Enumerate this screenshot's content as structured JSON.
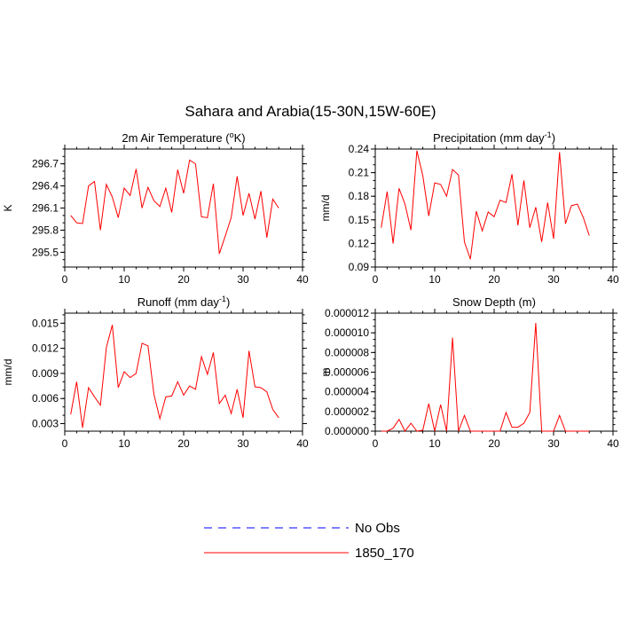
{
  "figure": {
    "title": "Sahara and Arabia(15-30N,15W-60E)",
    "legend": [
      {
        "label": "No Obs",
        "color": "#0000ff",
        "dashed": true
      },
      {
        "label": "1850_170",
        "color": "#ff0000",
        "dashed": false
      }
    ]
  },
  "chart_data": [
    {
      "type": "line",
      "title": "2m Air Temperature (°K)",
      "title_parts": [
        "2m Air Temperature (",
        "o",
        "K)"
      ],
      "ylabel": "K",
      "xlim": [
        0,
        40
      ],
      "ylim": [
        295.3,
        296.9
      ],
      "xticks": [
        0,
        10,
        20,
        30,
        40
      ],
      "yticks": [
        295.5,
        295.8,
        296.1,
        296.4,
        296.7
      ],
      "ytick_labels": [
        "295.5",
        "295.8",
        "296.1",
        "296.4",
        "296.7"
      ],
      "series": [
        {
          "name": "1850_170",
          "color": "#ff0000",
          "x": [
            1,
            2,
            3,
            4,
            5,
            6,
            7,
            8,
            9,
            10,
            11,
            12,
            13,
            14,
            15,
            16,
            17,
            18,
            19,
            20,
            21,
            22,
            23,
            24,
            25,
            26,
            27,
            28,
            29,
            30,
            31,
            32,
            33,
            34,
            35,
            36
          ],
          "y": [
            296.0,
            295.9,
            295.89,
            296.4,
            296.46,
            295.8,
            296.42,
            296.25,
            295.97,
            296.37,
            296.27,
            296.63,
            296.1,
            296.38,
            296.2,
            296.12,
            296.37,
            296.04,
            296.62,
            296.3,
            296.75,
            296.7,
            295.98,
            295.97,
            296.43,
            295.48,
            295.72,
            295.97,
            296.53,
            296.0,
            296.3,
            295.95,
            296.33,
            295.7,
            296.22,
            296.1
          ]
        }
      ]
    },
    {
      "type": "line",
      "title": "Precipitation (mm day-1)",
      "title_parts": [
        "Precipitation (mm day",
        "-1",
        ")"
      ],
      "ylabel": "mm/d",
      "xlim": [
        0,
        40
      ],
      "ylim": [
        0.09,
        0.24
      ],
      "xticks": [
        0,
        10,
        20,
        30,
        40
      ],
      "yticks": [
        0.09,
        0.12,
        0.15,
        0.18,
        0.21,
        0.24
      ],
      "ytick_labels": [
        "0.09",
        "0.12",
        "0.15",
        "0.18",
        "0.21",
        "0.24"
      ],
      "series": [
        {
          "name": "1850_170",
          "color": "#ff0000",
          "x": [
            1,
            2,
            3,
            4,
            5,
            6,
            7,
            8,
            9,
            10,
            11,
            12,
            13,
            14,
            15,
            16,
            17,
            18,
            19,
            20,
            21,
            22,
            23,
            24,
            25,
            26,
            27,
            28,
            29,
            30,
            31,
            32,
            33,
            34,
            35,
            36
          ],
          "y": [
            0.14,
            0.186,
            0.12,
            0.19,
            0.17,
            0.137,
            0.238,
            0.206,
            0.155,
            0.197,
            0.195,
            0.18,
            0.214,
            0.207,
            0.122,
            0.1,
            0.161,
            0.136,
            0.16,
            0.154,
            0.175,
            0.172,
            0.208,
            0.143,
            0.2,
            0.14,
            0.166,
            0.122,
            0.172,
            0.126,
            0.236,
            0.145,
            0.168,
            0.17,
            0.153,
            0.13
          ]
        }
      ]
    },
    {
      "type": "line",
      "title": "Runoff (mm day-1)",
      "title_parts": [
        "Runoff (mm day",
        "-1",
        ")"
      ],
      "ylabel": "mm/d",
      "xlim": [
        0,
        40
      ],
      "ylim": [
        0.0021,
        0.0162
      ],
      "xticks": [
        0,
        10,
        20,
        30,
        40
      ],
      "yticks": [
        0.003,
        0.006,
        0.009,
        0.012,
        0.015
      ],
      "ytick_labels": [
        "0.003",
        "0.006",
        "0.009",
        "0.012",
        "0.015"
      ],
      "series": [
        {
          "name": "1850_170",
          "color": "#ff0000",
          "x": [
            1,
            2,
            3,
            4,
            5,
            6,
            7,
            8,
            9,
            10,
            11,
            12,
            13,
            14,
            15,
            16,
            17,
            18,
            19,
            20,
            21,
            22,
            23,
            24,
            25,
            26,
            27,
            28,
            29,
            30,
            31,
            32,
            33,
            34,
            35,
            36
          ],
          "y": [
            0.0041,
            0.008,
            0.0025,
            0.0073,
            0.0062,
            0.0052,
            0.0121,
            0.0148,
            0.0073,
            0.0092,
            0.0085,
            0.009,
            0.0126,
            0.0123,
            0.0065,
            0.0036,
            0.0062,
            0.0063,
            0.008,
            0.0064,
            0.0075,
            0.0071,
            0.011,
            0.0089,
            0.0115,
            0.0054,
            0.0064,
            0.0042,
            0.0071,
            0.0037,
            0.0117,
            0.0074,
            0.0073,
            0.0068,
            0.0047,
            0.0037
          ]
        }
      ]
    },
    {
      "type": "line",
      "title": "Snow Depth (m)",
      "title_parts": [
        "Snow Depth (m)"
      ],
      "ylabel": "m",
      "xlim": [
        0,
        40
      ],
      "ylim": [
        0,
        1.2e-05
      ],
      "xticks": [
        0,
        10,
        20,
        30,
        40
      ],
      "yticks": [
        0,
        2e-06,
        4e-06,
        6e-06,
        8e-06,
        1e-05,
        1.2e-05
      ],
      "ytick_labels": [
        "0.000000",
        "0.000002",
        "0.000004",
        "0.000006",
        "0.000008",
        "0.000010",
        "0.000012"
      ],
      "series": [
        {
          "name": "1850_170",
          "color": "#ff0000",
          "x": [
            1,
            2,
            3,
            4,
            5,
            6,
            7,
            8,
            9,
            10,
            11,
            12,
            13,
            14,
            15,
            16,
            17,
            18,
            19,
            20,
            21,
            22,
            23,
            24,
            25,
            26,
            27,
            28,
            29,
            30,
            31,
            32,
            33,
            34,
            35,
            36
          ],
          "y": [
            0,
            0,
            3e-07,
            1.2e-06,
            0,
            8e-07,
            0,
            1e-07,
            2.8e-06,
            0,
            2.7e-06,
            0,
            9.5e-06,
            0,
            1.6e-06,
            0,
            0,
            0,
            0,
            0,
            0,
            1.9e-06,
            4e-07,
            4e-07,
            8e-07,
            1.9e-06,
            1.1e-05,
            0,
            0,
            0,
            1.6e-06,
            0,
            0,
            0,
            0,
            0
          ]
        }
      ]
    }
  ]
}
